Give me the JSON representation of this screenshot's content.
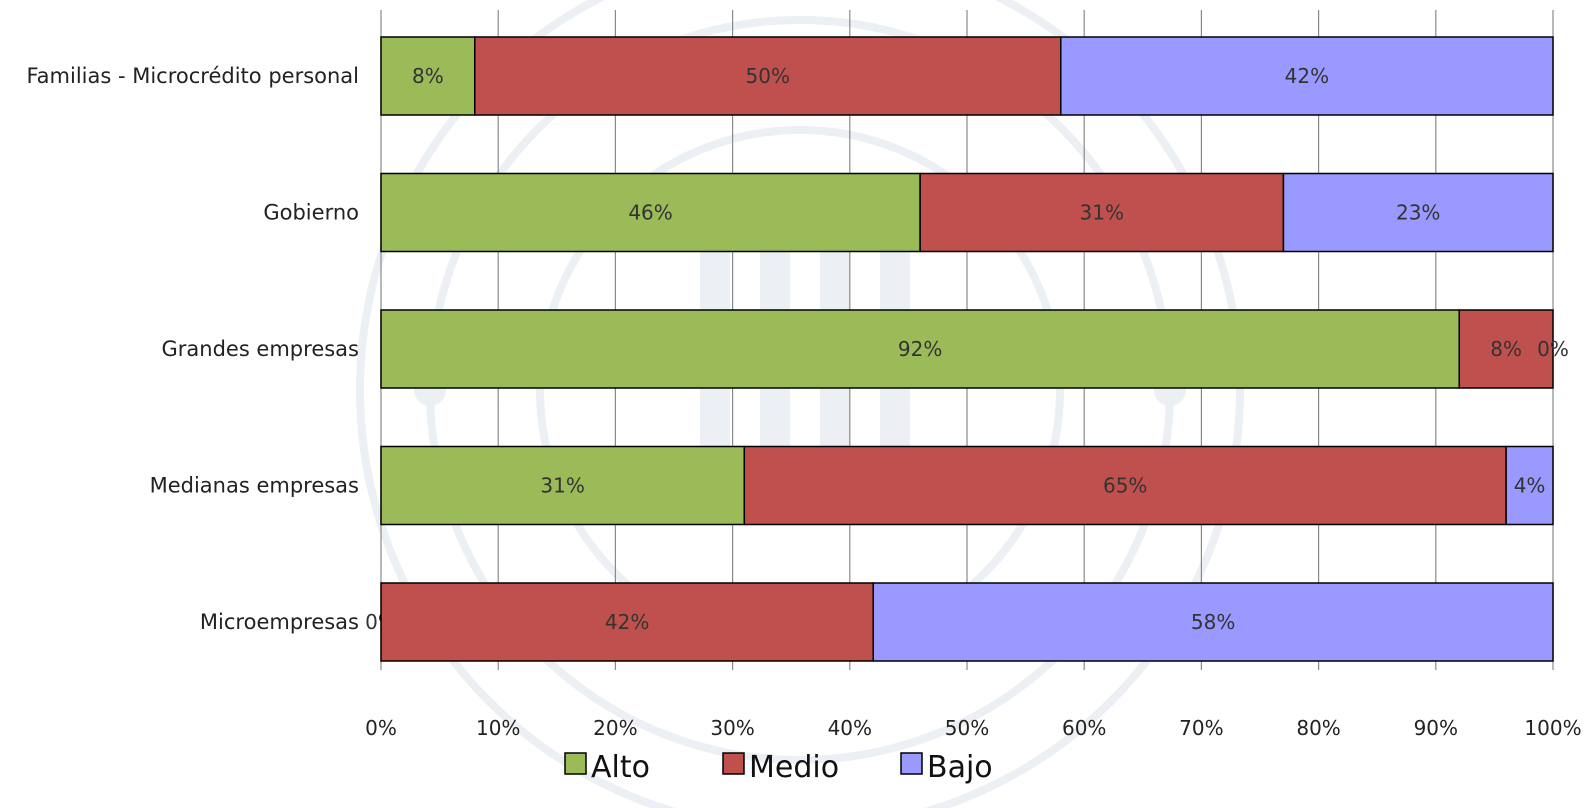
{
  "chart_data": {
    "type": "bar",
    "orientation": "horizontal",
    "stacked": "percent",
    "categories": [
      "Familias - Microcrédito personal",
      "Gobierno",
      "Grandes empresas",
      "Medianas empresas",
      "Microempresas"
    ],
    "series": [
      {
        "name": "Alto",
        "color": "#9bbb59",
        "values": [
          8,
          46,
          92,
          31,
          0
        ],
        "labels": [
          "8%",
          "46%",
          "92%",
          "31%",
          "0%"
        ]
      },
      {
        "name": "Medio",
        "color": "#c0504d",
        "values": [
          50,
          31,
          8,
          65,
          42
        ],
        "labels": [
          "50%",
          "31%",
          "8%",
          "65%",
          "42%"
        ]
      },
      {
        "name": "Bajo",
        "color": "#9999ff",
        "values": [
          42,
          23,
          0,
          4,
          58
        ],
        "labels": [
          "42%",
          "23%",
          "0%",
          "4%",
          "58%"
        ]
      }
    ],
    "xlim": [
      0,
      100
    ],
    "x_ticks": [
      "0%",
      "10%",
      "20%",
      "30%",
      "40%",
      "50%",
      "60%",
      "70%",
      "80%",
      "90%",
      "100%"
    ],
    "grid": "vertical",
    "legend_position": "bottom",
    "watermark": "seal"
  }
}
